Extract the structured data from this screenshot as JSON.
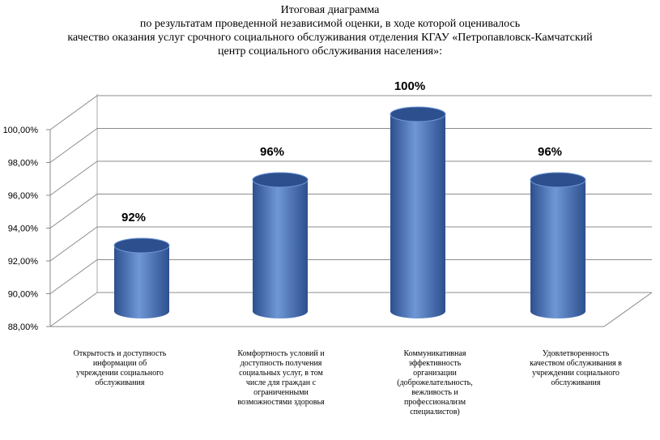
{
  "chart_data": {
    "type": "bar",
    "title_lines": [
      "Итоговая диаграмма",
      "по результатам проведенной независимой оценки, в ходе которой оценивалось",
      "качество оказания услуг срочного социального обслуживания отделения  КГАУ «Петропавловск-Камчатский",
      "центр социального обслуживания населения»:"
    ],
    "categories": [
      "Открытость и доступность информации об учреждении социального обслуживания",
      "Комфортность условий и доступность получения социальных услуг, в том числе для граждан с ограниченными возможностями здоровья",
      "Коммуникативная эффективность организации (доброжелательность, вежливость и профессионализм специалистов)",
      "Удовлетворенность качеством обслуживания в учреждении социального обслуживания"
    ],
    "values": [
      92,
      96,
      100,
      96
    ],
    "data_labels": [
      "92%",
      "96%",
      "100%",
      "96%"
    ],
    "yticks": [
      "88,00%",
      "90,00%",
      "92,00%",
      "94,00%",
      "96,00%",
      "98,00%",
      "100,00%"
    ],
    "ylim": [
      88,
      100
    ],
    "grid": true,
    "legend": "none",
    "colors": {
      "bar": "#4a78c0",
      "bar_dark": "#2d4f8e",
      "bar_light": "#6f97d6",
      "grid": "#8c8c8c"
    }
  }
}
